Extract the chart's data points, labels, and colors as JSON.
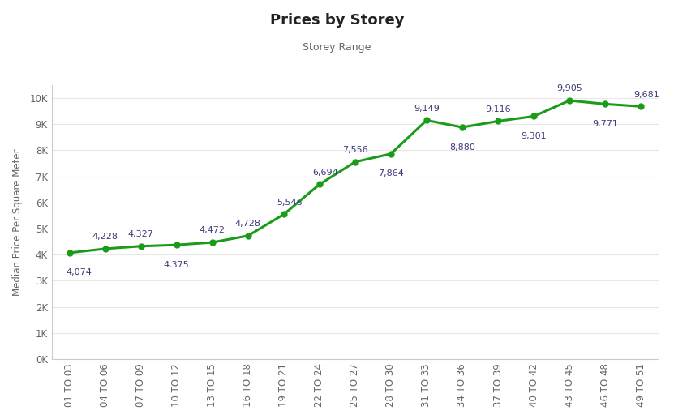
{
  "title": "Prices by Storey",
  "subtitle": "Storey Range",
  "xlabel": "",
  "ylabel": "Median Price Per Square Meter",
  "categories": [
    "01 TO 03",
    "04 TO 06",
    "07 TO 09",
    "10 TO 12",
    "13 TO 15",
    "16 TO 18",
    "19 TO 21",
    "22 TO 24",
    "25 TO 27",
    "28 TO 30",
    "31 TO 33",
    "34 TO 36",
    "37 TO 39",
    "40 TO 42",
    "43 TO 45",
    "46 TO 48",
    "49 TO 51"
  ],
  "values": [
    4074,
    4228,
    4327,
    4375,
    4472,
    4728,
    5546,
    6694,
    7556,
    7864,
    9149,
    8880,
    9116,
    9301,
    9905,
    9771,
    9681
  ],
  "line_color": "#1a9c1a",
  "marker_color": "#1a9c1a",
  "ylim": [
    0,
    10500
  ],
  "ytick_values": [
    0,
    1000,
    2000,
    3000,
    4000,
    5000,
    6000,
    7000,
    8000,
    9000,
    10000
  ],
  "ytick_labels": [
    "0K",
    "1K",
    "2K",
    "3K",
    "4K",
    "5K",
    "6K",
    "7K",
    "8K",
    "9K",
    "10K"
  ],
  "title_fontsize": 13,
  "subtitle_fontsize": 9,
  "label_fontsize": 8.5,
  "annotation_fontsize": 8,
  "axis_label_fontsize": 8.5,
  "background_color": "#ffffff",
  "grid_color": "#e8e8e8",
  "annotation_color": "#3a3a7a",
  "tick_color": "#666666"
}
